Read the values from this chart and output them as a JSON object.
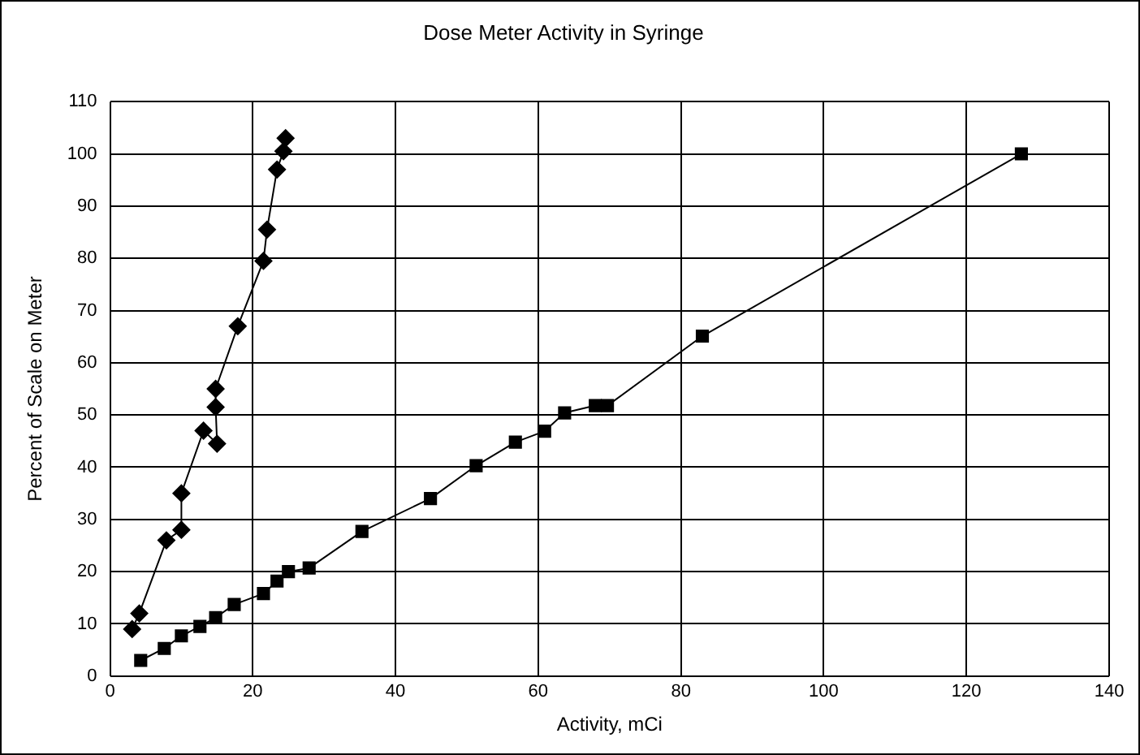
{
  "chart_data": {
    "type": "line",
    "title": "Dose Meter Activity in Syringe",
    "xlabel": "Activity, mCi",
    "ylabel": "Percent of Scale on Meter",
    "xlim": [
      0,
      140
    ],
    "xticks": [
      0,
      20,
      40,
      60,
      80,
      100,
      120,
      140
    ],
    "ylim": [
      0,
      110
    ],
    "yticks": [
      0,
      10,
      20,
      30,
      40,
      50,
      60,
      70,
      80,
      90,
      100,
      110
    ],
    "grid": true,
    "legend": false,
    "series": [
      {
        "color": "#000000",
        "marker": "diamond",
        "x": [
          3.1,
          4.1,
          7.9,
          10,
          10,
          13.1,
          15,
          14.8,
          14.8,
          17.9,
          21.5,
          22,
          23.4,
          24.3,
          24.6
        ],
        "values": [
          9,
          12,
          26,
          28,
          35,
          47,
          44.5,
          51.5,
          55,
          67,
          79.5,
          85.5,
          97,
          100.5,
          103
        ]
      },
      {
        "color": "#000000",
        "marker": "square",
        "x": [
          4.3,
          7.6,
          10,
          12.6,
          14.8,
          17.4,
          21.5,
          23.4,
          25,
          27.9,
          35.3,
          44.9,
          51.3,
          56.8,
          60.9,
          63.7,
          68,
          69.7,
          83,
          127.7
        ],
        "values": [
          3,
          5.3,
          7.7,
          9.5,
          11.2,
          13.7,
          15.8,
          18.2,
          20,
          20.7,
          27.7,
          34,
          40.3,
          44.8,
          46.9,
          50.4,
          51.8,
          51.8,
          65.1,
          100
        ]
      }
    ]
  }
}
